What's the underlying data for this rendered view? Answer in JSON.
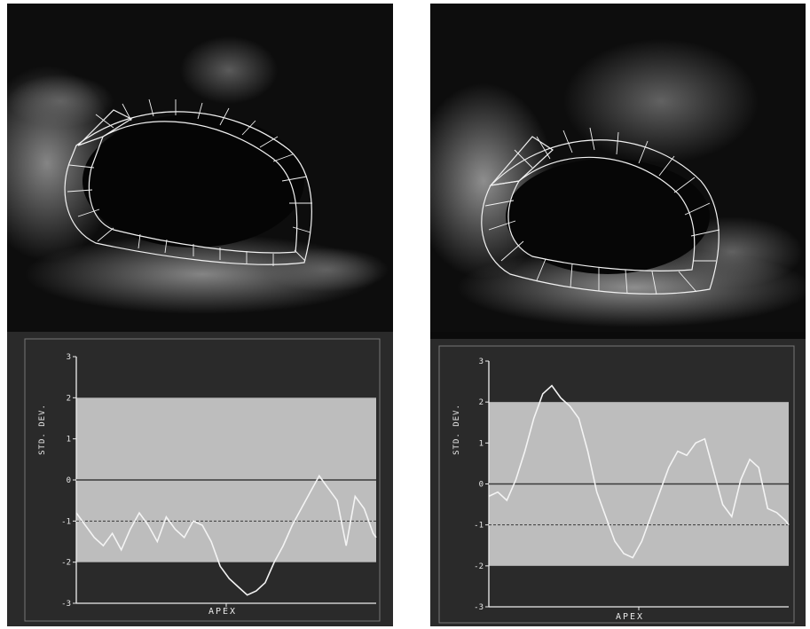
{
  "chart_data": [
    {
      "type": "line",
      "panel": "left",
      "ylabel": "STD. DEV.",
      "xlabel": "APEX",
      "ylim": [
        -3,
        3
      ],
      "yticks": [
        "3",
        "2",
        "1",
        "0",
        "-1",
        "-2",
        "-3"
      ],
      "normal_band": [
        -2,
        2
      ],
      "reference_lines": [
        0,
        -1
      ],
      "grid": false,
      "series": [
        {
          "x": [
            0,
            3,
            6,
            9,
            12,
            15,
            18,
            21,
            24,
            27,
            30,
            33,
            36,
            39,
            42,
            45,
            48,
            51,
            54,
            57,
            60,
            63,
            66,
            69,
            72,
            75,
            78,
            81,
            84,
            87,
            90,
            93,
            96,
            99,
            100
          ],
          "values": [
            -0.8,
            -1.1,
            -1.4,
            -1.6,
            -1.3,
            -1.7,
            -1.2,
            -0.8,
            -1.1,
            -1.5,
            -0.9,
            -1.2,
            -1.4,
            -1.0,
            -1.1,
            -1.5,
            -2.1,
            -2.4,
            -2.6,
            -2.8,
            -2.7,
            -2.5,
            -2.0,
            -1.6,
            -1.1,
            -0.7,
            -0.3,
            0.1,
            -0.2,
            -0.5,
            -1.6,
            -0.4,
            -0.7,
            -1.3,
            -1.4
          ]
        }
      ]
    },
    {
      "type": "line",
      "panel": "right",
      "ylabel": "STD. DEV.",
      "xlabel": "APEX",
      "ylim": [
        -3,
        3
      ],
      "yticks": [
        "3",
        "2",
        "1",
        "0",
        "-1",
        "-2",
        "-3"
      ],
      "normal_band": [
        -2,
        2
      ],
      "reference_lines": [
        0,
        -1
      ],
      "grid": false,
      "series": [
        {
          "x": [
            0,
            3,
            6,
            9,
            12,
            15,
            18,
            21,
            24,
            27,
            30,
            33,
            36,
            39,
            42,
            45,
            48,
            51,
            54,
            57,
            60,
            63,
            66,
            69,
            72,
            75,
            78,
            81,
            84,
            87,
            90,
            93,
            96,
            99,
            100
          ],
          "values": [
            -0.3,
            -0.2,
            -0.4,
            0.1,
            0.8,
            1.6,
            2.2,
            2.4,
            2.1,
            1.9,
            1.6,
            0.8,
            -0.2,
            -0.8,
            -1.4,
            -1.7,
            -1.8,
            -1.4,
            -0.8,
            -0.2,
            0.4,
            0.8,
            0.7,
            1.0,
            1.1,
            0.3,
            -0.5,
            -0.8,
            0.1,
            0.6,
            0.4,
            -0.6,
            -0.7,
            -0.9,
            -1.0
          ]
        }
      ]
    }
  ]
}
